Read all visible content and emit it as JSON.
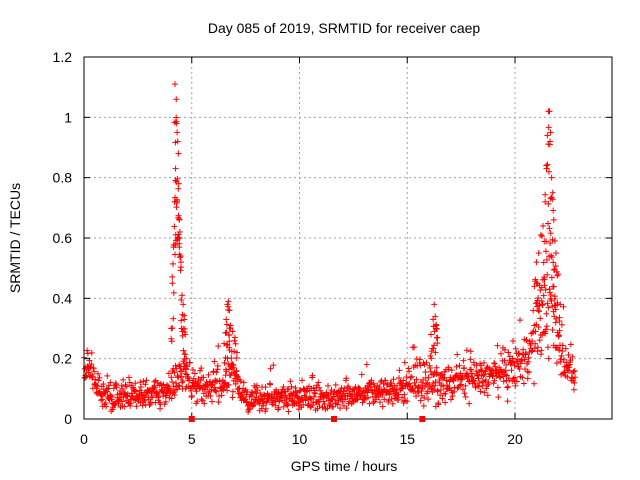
{
  "chart_data": {
    "type": "scatter",
    "title": "Day 085 of 2019, SRMTID for receiver caep",
    "xlabel": "GPS time / hours",
    "ylabel": "SRMTID / TECUs",
    "xlim": [
      0,
      24.5
    ],
    "ylim": [
      0,
      1.2
    ],
    "xticks": [
      0,
      5,
      10,
      15,
      20
    ],
    "xtick_labels": [
      "0",
      "5",
      "10",
      "15",
      "20"
    ],
    "yticks": [
      0,
      0.2,
      0.4,
      0.6,
      0.8,
      1.0,
      1.2
    ],
    "ytick_labels": [
      "0",
      "0.2",
      "0.4",
      "0.6",
      "0.8",
      "1",
      "1.2"
    ],
    "grid": true,
    "marker": "plus",
    "color": "#ff0000",
    "axis_markers_x": [
      5.0,
      11.6,
      15.7
    ],
    "envelope": {
      "description": "approximate SRMTID level across the day",
      "x": [
        0.0,
        0.3,
        0.7,
        1.0,
        1.5,
        2.0,
        2.5,
        3.0,
        3.5,
        4.0,
        4.3,
        4.6,
        5.0,
        5.5,
        6.0,
        6.5,
        6.8,
        7.2,
        7.5,
        8.0,
        8.5,
        9.0,
        9.5,
        10.0,
        10.5,
        11.0,
        11.5,
        12.0,
        12.5,
        13.0,
        13.5,
        14.0,
        14.5,
        15.0,
        15.5,
        16.0,
        16.3,
        16.7,
        17.0,
        17.5,
        18.0,
        18.5,
        19.0,
        19.5,
        20.0,
        20.5,
        20.8,
        21.0,
        21.3,
        21.6,
        21.8,
        22.0,
        22.3,
        22.6,
        22.8
      ],
      "center": [
        0.15,
        0.16,
        0.1,
        0.07,
        0.07,
        0.08,
        0.08,
        0.08,
        0.09,
        0.1,
        0.12,
        0.15,
        0.12,
        0.11,
        0.1,
        0.12,
        0.15,
        0.1,
        0.07,
        0.06,
        0.07,
        0.08,
        0.07,
        0.07,
        0.08,
        0.07,
        0.07,
        0.08,
        0.08,
        0.09,
        0.09,
        0.09,
        0.09,
        0.1,
        0.13,
        0.12,
        0.11,
        0.11,
        0.12,
        0.13,
        0.13,
        0.14,
        0.14,
        0.15,
        0.17,
        0.2,
        0.24,
        0.28,
        0.35,
        0.4,
        0.33,
        0.25,
        0.2,
        0.16,
        0.13
      ],
      "spread": [
        0.04,
        0.04,
        0.03,
        0.03,
        0.03,
        0.03,
        0.03,
        0.03,
        0.03,
        0.04,
        0.04,
        0.05,
        0.04,
        0.04,
        0.04,
        0.04,
        0.05,
        0.04,
        0.03,
        0.03,
        0.03,
        0.03,
        0.03,
        0.03,
        0.03,
        0.03,
        0.03,
        0.03,
        0.03,
        0.03,
        0.03,
        0.03,
        0.03,
        0.04,
        0.05,
        0.04,
        0.04,
        0.04,
        0.04,
        0.04,
        0.04,
        0.04,
        0.04,
        0.05,
        0.05,
        0.06,
        0.07,
        0.08,
        0.1,
        0.12,
        0.1,
        0.07,
        0.06,
        0.04,
        0.03
      ]
    },
    "spikes": [
      {
        "name": "spike-4.3h",
        "x": [
          4.05,
          4.1,
          4.15,
          4.2,
          4.22,
          4.25,
          4.28,
          4.3,
          4.32,
          4.35,
          4.38,
          4.4,
          4.42,
          4.45,
          4.5,
          4.55,
          4.6,
          4.65,
          4.7,
          4.75
        ],
        "y": [
          0.3,
          0.45,
          0.57,
          0.72,
          1.11,
          0.83,
          1.06,
          0.98,
          0.95,
          0.92,
          0.88,
          0.78,
          0.66,
          0.62,
          0.52,
          0.41,
          0.38,
          0.33,
          0.28,
          0.2
        ]
      },
      {
        "name": "spike-6.7h",
        "x": [
          6.5,
          6.6,
          6.65,
          6.7,
          6.75,
          6.8,
          6.9,
          7.0,
          7.1
        ],
        "y": [
          0.25,
          0.33,
          0.38,
          0.39,
          0.36,
          0.31,
          0.29,
          0.27,
          0.22
        ]
      },
      {
        "name": "spike-16.3h",
        "x": [
          16.1,
          16.2,
          16.25,
          16.3,
          16.35,
          16.4
        ],
        "y": [
          0.28,
          0.33,
          0.38,
          0.34,
          0.31,
          0.27
        ]
      },
      {
        "name": "spike-21.5h",
        "x": [
          20.9,
          21.0,
          21.1,
          21.2,
          21.3,
          21.4,
          21.45,
          21.5,
          21.55,
          21.6,
          21.65,
          21.7,
          21.75,
          21.8,
          21.85,
          21.9,
          22.0,
          22.1
        ],
        "y": [
          0.44,
          0.52,
          0.55,
          0.61,
          0.64,
          0.72,
          0.84,
          0.94,
          1.02,
          1.02,
          0.95,
          0.8,
          0.75,
          0.66,
          0.59,
          0.55,
          0.48,
          0.38
        ]
      }
    ]
  }
}
